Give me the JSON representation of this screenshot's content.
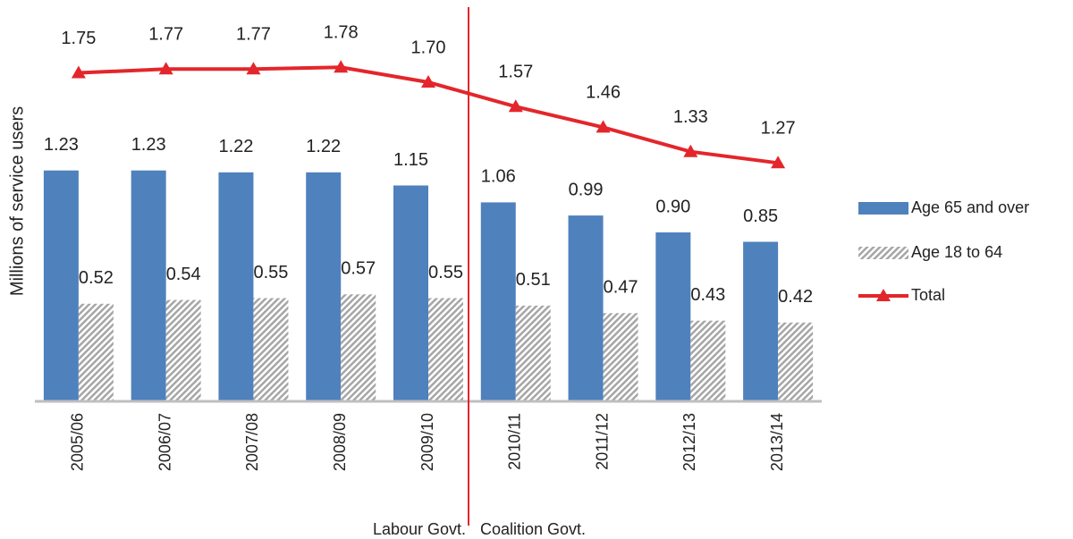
{
  "chart_data": {
    "type": "bar_line",
    "y_axis_label": "Millions  of service users",
    "categories": [
      "2005/06",
      "2006/07",
      "2007/08",
      "2008/09",
      "2009/10",
      "2010/11",
      "2011/12",
      "2012/13",
      "2013/14"
    ],
    "ylim": [
      0,
      2.1
    ],
    "series": [
      {
        "name": "Age 65 and over",
        "type": "bar",
        "color": "#4f81bd",
        "values": [
          1.23,
          1.23,
          1.22,
          1.22,
          1.15,
          1.06,
          0.99,
          0.9,
          0.85
        ],
        "value_labels": [
          "1.23",
          "1.23",
          "1.22",
          "1.22",
          "1.15",
          "1.06",
          "0.99",
          "0.90",
          "0.85"
        ]
      },
      {
        "name": "Age 18 to 64",
        "type": "bar",
        "pattern": "hatch",
        "color": "#a6a6a6",
        "values": [
          0.52,
          0.54,
          0.55,
          0.57,
          0.55,
          0.51,
          0.47,
          0.43,
          0.42
        ],
        "value_labels": [
          "0.52",
          "0.54",
          "0.55",
          "0.57",
          "0.55",
          "0.51",
          "0.47",
          "0.43",
          "0.42"
        ]
      },
      {
        "name": "Total",
        "type": "line",
        "color": "#e3262b",
        "values": [
          1.75,
          1.77,
          1.77,
          1.78,
          1.7,
          1.57,
          1.46,
          1.33,
          1.27
        ],
        "value_labels": [
          "1.75",
          "1.77",
          "1.77",
          "1.78",
          "1.70",
          "1.57",
          "1.46",
          "1.33",
          "1.27"
        ]
      }
    ],
    "annotations": [
      "Labour Govt.",
      "Coalition Govt."
    ]
  }
}
